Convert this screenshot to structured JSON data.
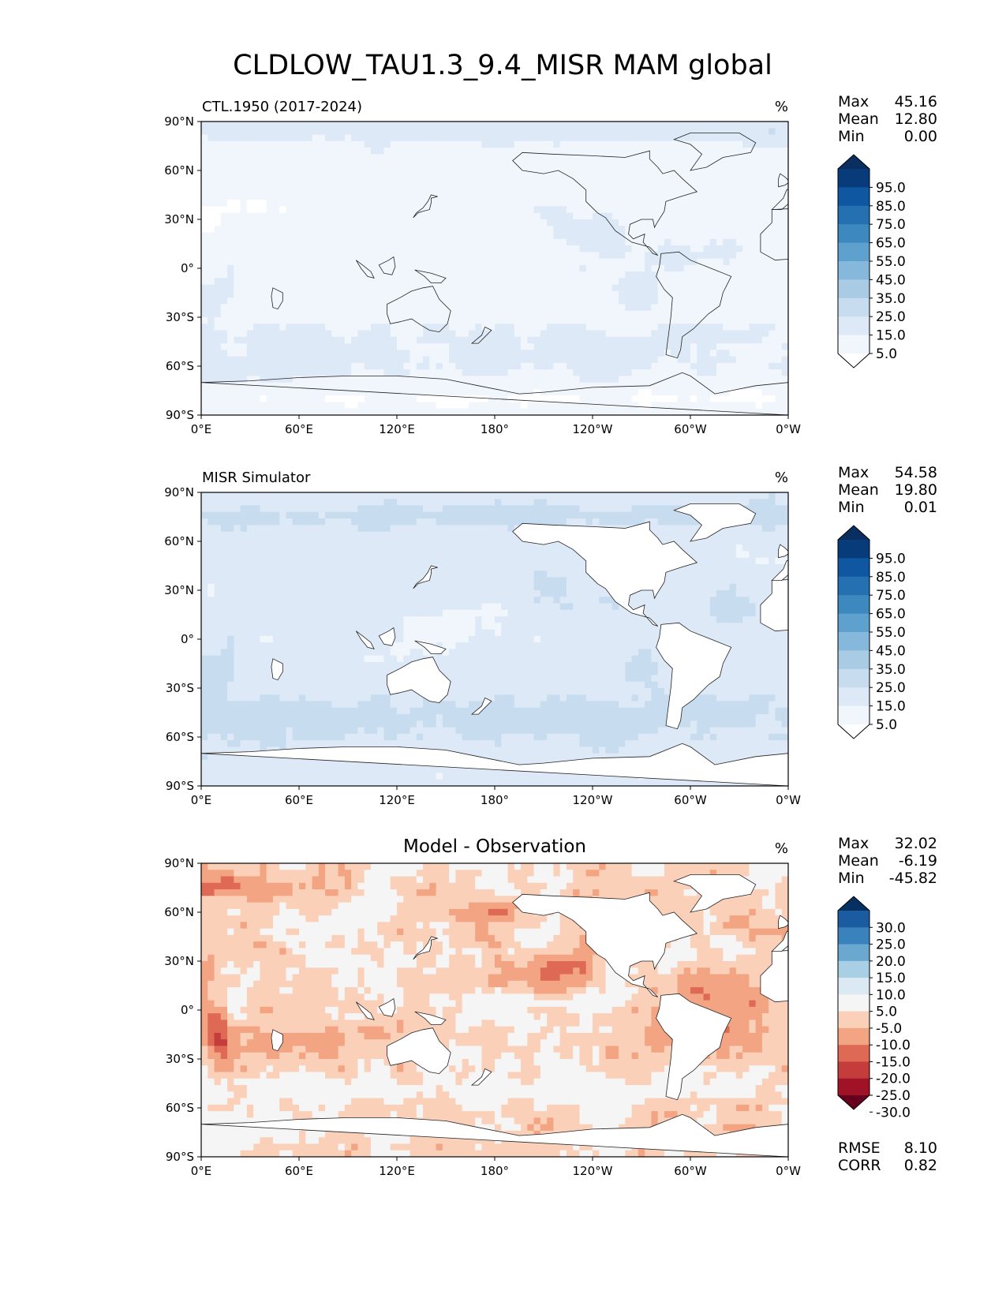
{
  "figure": {
    "title": "CLDLOW_TAU1.3_9.4_MISR MAM global"
  },
  "axes": {
    "xticks": [
      "0°E",
      "60°E",
      "120°E",
      "180°",
      "120°W",
      "60°W",
      "0°W"
    ],
    "yticks": [
      "90°N",
      "60°N",
      "30°N",
      "0°",
      "30°S",
      "60°S",
      "90°S"
    ]
  },
  "panels": [
    {
      "title_left": "CTL.1950 (2017-2024)",
      "title_center": "",
      "units": "%",
      "stats": [
        {
          "label": "Max",
          "value": "45.16"
        },
        {
          "label": "Mean",
          "value": "12.80"
        },
        {
          "label": "Min",
          "value": "0.00"
        }
      ],
      "colorbar_ticks": [
        "95.0",
        "85.0",
        "75.0",
        "65.0",
        "55.0",
        "45.0",
        "35.0",
        "25.0",
        "15.0",
        "5.0"
      ]
    },
    {
      "title_left": "MISR Simulator",
      "title_center": "",
      "units": "%",
      "stats": [
        {
          "label": "Max",
          "value": "54.58"
        },
        {
          "label": "Mean",
          "value": "19.80"
        },
        {
          "label": "Min",
          "value": "0.01"
        }
      ],
      "colorbar_ticks": [
        "95.0",
        "85.0",
        "75.0",
        "65.0",
        "55.0",
        "45.0",
        "35.0",
        "25.0",
        "15.0",
        "5.0"
      ]
    },
    {
      "title_left": "",
      "title_center": "Model - Observation",
      "units": "%",
      "stats": [
        {
          "label": "Max",
          "value": "32.02"
        },
        {
          "label": "Mean",
          "value": "-6.19"
        },
        {
          "label": "Min",
          "value": "-45.82"
        }
      ],
      "colorbar_ticks": [
        "30.0",
        "25.0",
        "20.0",
        "15.0",
        "10.0",
        "5.0",
        "-5.0",
        "-10.0",
        "-15.0",
        "-20.0",
        "-25.0",
        "-30.0"
      ],
      "metrics": [
        {
          "label": "RMSE",
          "value": "8.10"
        },
        {
          "label": "CORR",
          "value": "0.82"
        }
      ]
    }
  ],
  "colors": {
    "blues": [
      "#ffffff",
      "#f0f6fc",
      "#dde9f6",
      "#c8dcef",
      "#a9cbe4",
      "#86b8db",
      "#5ea1ce",
      "#3e88c0",
      "#2570b1",
      "#0f57a0",
      "#083b7a",
      "#082f60"
    ],
    "diverging": [
      "#67001f",
      "#a01226",
      "#c43c3c",
      "#de6a56",
      "#f3a482",
      "#fbd0b9",
      "#f5f5f5",
      "#dbe9f2",
      "#a8cfe4",
      "#6aa8d0",
      "#3a82bb",
      "#1a5c9f",
      "#053061"
    ]
  },
  "chart_data": [
    {
      "type": "heatmap",
      "title": "CTL.1950 (2017-2024)",
      "units": "%",
      "x_range": [
        0,
        360
      ],
      "y_range": [
        -90,
        90
      ],
      "stats": {
        "max": 45.16,
        "mean": 12.8,
        "min": 0.0
      },
      "colorbar_levels": [
        5,
        15,
        25,
        35,
        45,
        55,
        65,
        75,
        85,
        95
      ]
    },
    {
      "type": "heatmap",
      "title": "MISR Simulator",
      "units": "%",
      "x_range": [
        0,
        360
      ],
      "y_range": [
        -90,
        90
      ],
      "stats": {
        "max": 54.58,
        "mean": 19.8,
        "min": 0.01
      },
      "colorbar_levels": [
        5,
        15,
        25,
        35,
        45,
        55,
        65,
        75,
        85,
        95
      ]
    },
    {
      "type": "heatmap",
      "title": "Model - Observation",
      "units": "%",
      "x_range": [
        0,
        360
      ],
      "y_range": [
        -90,
        90
      ],
      "stats": {
        "max": 32.02,
        "mean": -6.19,
        "min": -45.82,
        "rmse": 8.1,
        "corr": 0.82
      },
      "colorbar_levels": [
        -30,
        -25,
        -20,
        -15,
        -10,
        -5,
        5,
        10,
        15,
        20,
        25,
        30
      ]
    }
  ]
}
